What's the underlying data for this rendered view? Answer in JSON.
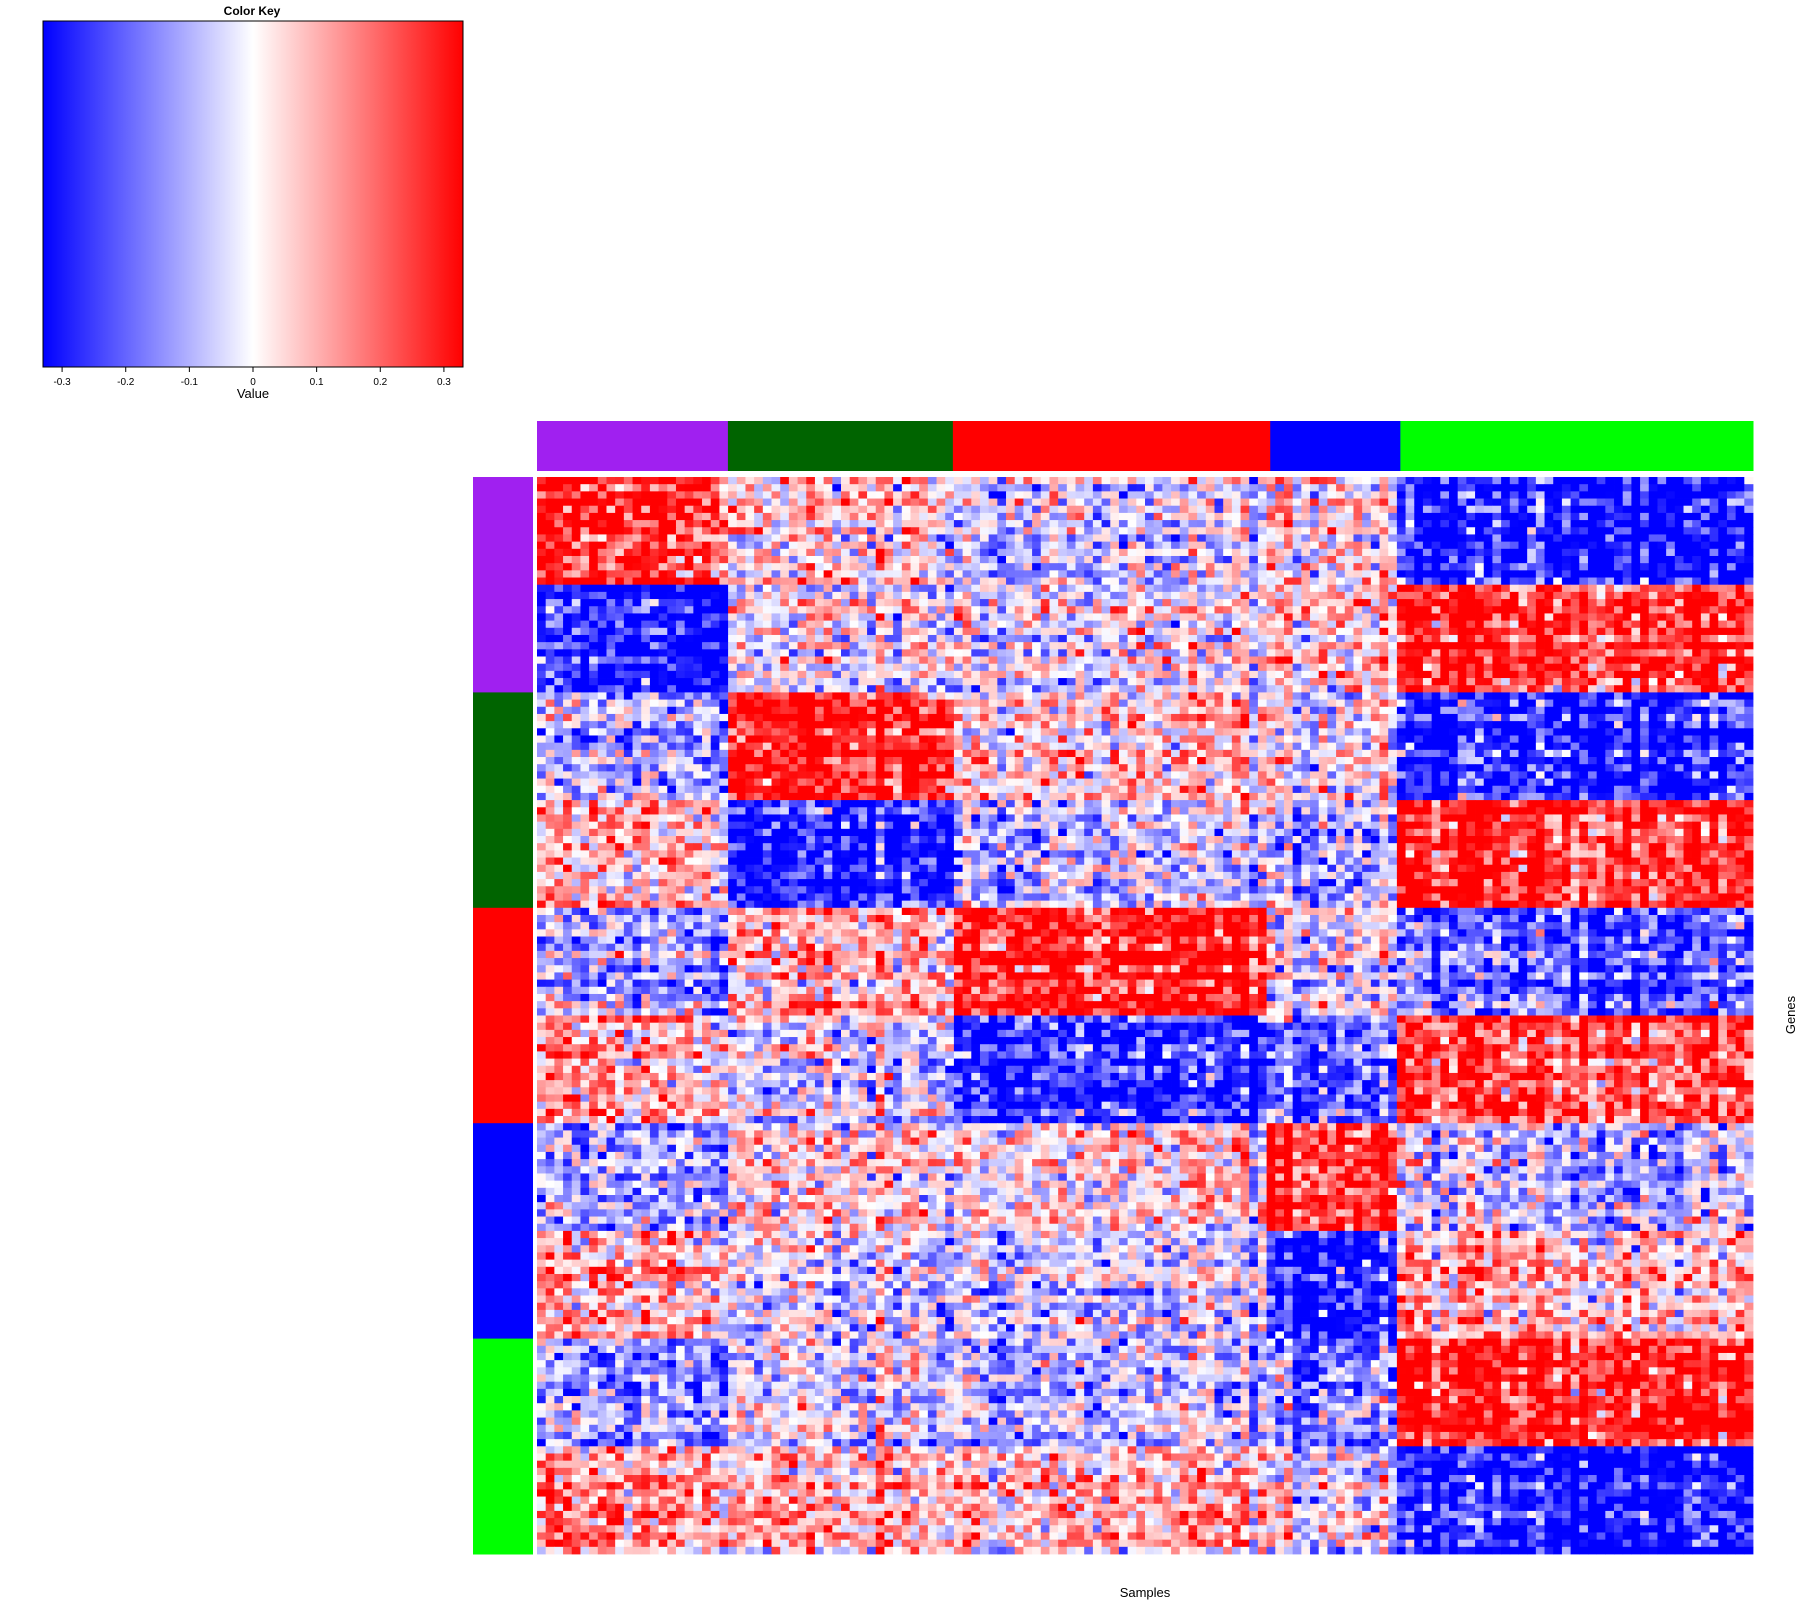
{
  "colors": {
    "purple": "#a020f0",
    "darkgreen": "#006400",
    "red": "#ff0000",
    "blue": "#0000ff",
    "green": "#00ff00",
    "low": "#0000ff",
    "mid": "#ffffff",
    "high": "#ff0000"
  },
  "chart_data": [
    {
      "type": "heatmap",
      "title": "",
      "xlabel": "Samples",
      "ylabel": "Genes",
      "legend_position": "top-left",
      "grid": false,
      "column_groups": [
        {
          "color": "purple",
          "fraction": 0.157
        },
        {
          "color": "darkgreen",
          "fraction": 0.185
        },
        {
          "color": "red",
          "fraction": 0.261
        },
        {
          "color": "blue",
          "fraction": 0.107
        },
        {
          "color": "green",
          "fraction": 0.29
        }
      ],
      "row_groups": [
        {
          "color": "purple",
          "fraction": 0.2
        },
        {
          "color": "darkgreen",
          "fraction": 0.2
        },
        {
          "color": "red",
          "fraction": 0.2
        },
        {
          "color": "blue",
          "fraction": 0.2
        },
        {
          "color": "green",
          "fraction": 0.2
        }
      ],
      "block_pattern_rows": [
        {
          "row_group": "purple",
          "part": "upper",
          "values": [
            0.3,
            0.05,
            -0.05,
            0.05,
            -0.3
          ]
        },
        {
          "row_group": "purple",
          "part": "lower",
          "values": [
            -0.3,
            0.0,
            0.0,
            0.1,
            0.3
          ]
        },
        {
          "row_group": "darkgreen",
          "part": "upper",
          "values": [
            -0.1,
            0.3,
            0.05,
            0.0,
            -0.3
          ]
        },
        {
          "row_group": "darkgreen",
          "part": "lower",
          "values": [
            0.1,
            -0.3,
            -0.05,
            -0.1,
            0.3
          ]
        },
        {
          "row_group": "red",
          "part": "upper",
          "values": [
            -0.1,
            0.1,
            0.3,
            0.0,
            -0.2
          ]
        },
        {
          "row_group": "red",
          "part": "lower",
          "values": [
            0.1,
            -0.05,
            -0.3,
            -0.2,
            0.25
          ]
        },
        {
          "row_group": "blue",
          "part": "upper",
          "values": [
            -0.1,
            0.05,
            0.05,
            0.3,
            -0.05
          ]
        },
        {
          "row_group": "blue",
          "part": "lower",
          "values": [
            0.1,
            -0.05,
            -0.05,
            -0.3,
            0.1
          ]
        },
        {
          "row_group": "green",
          "part": "upper",
          "values": [
            -0.15,
            -0.05,
            -0.1,
            -0.15,
            0.3
          ]
        },
        {
          "row_group": "green",
          "part": "lower",
          "values": [
            0.15,
            0.1,
            0.1,
            0.0,
            -0.3
          ]
        }
      ]
    },
    {
      "type": "colorbar",
      "title": "Color Key",
      "xlabel": "Value",
      "range": [
        -0.33,
        0.33
      ],
      "ticks": [
        -0.3,
        -0.2,
        -0.1,
        0,
        0.1,
        0.2,
        0.3
      ],
      "tick_labels": [
        "-0.3",
        "-0.2",
        "-0.1",
        "0",
        "0.1",
        "0.2",
        "0.3"
      ]
    }
  ]
}
